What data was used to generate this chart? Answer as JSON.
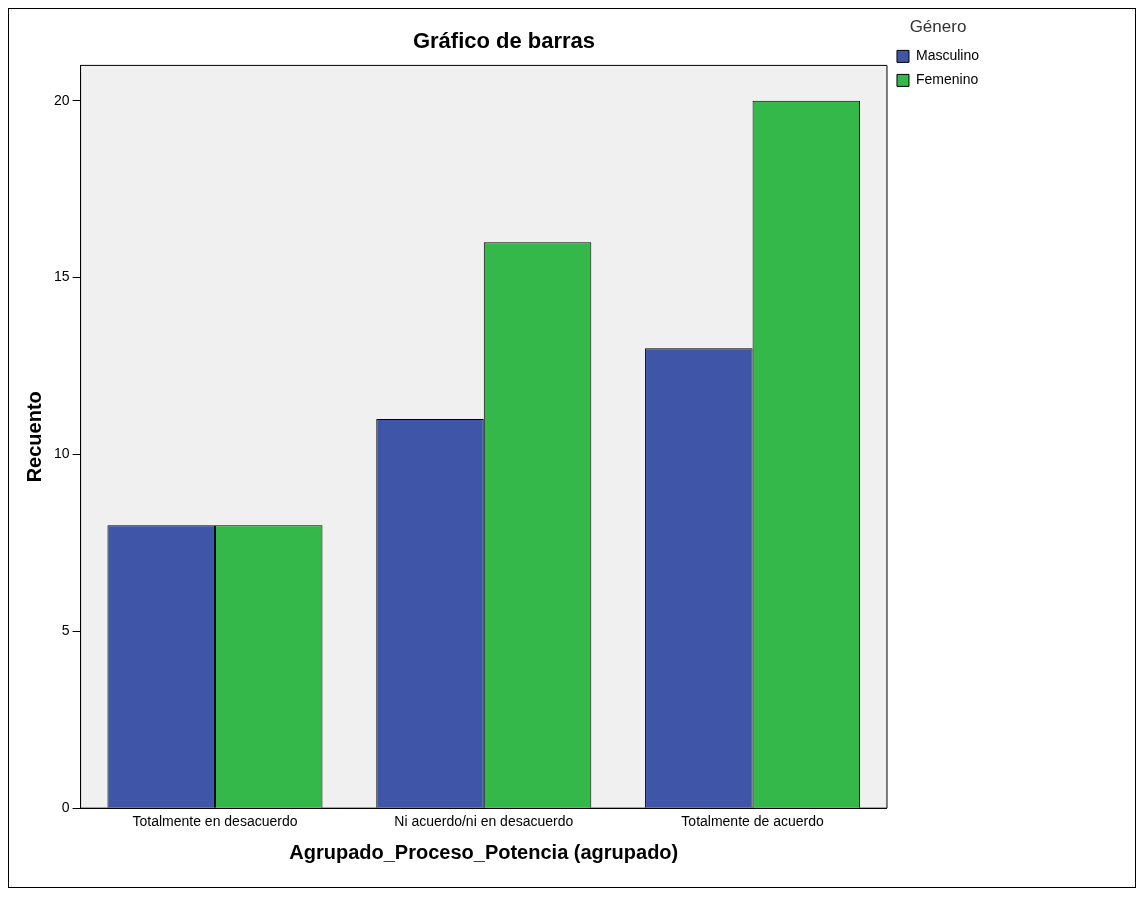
{
  "chart_data": {
    "type": "bar",
    "title": "Gráfico de barras",
    "xlabel": "Agrupado_Proceso_Potencia (agrupado)",
    "ylabel": "Recuento",
    "legend_title": "Género",
    "categories": [
      "Totalmente en desacuerdo",
      "Ni acuerdo/ni en desacuerdo",
      "Totalmente de acuerdo"
    ],
    "series": [
      {
        "name": "Masculino",
        "color": "#3f56a8",
        "values": [
          8,
          11,
          13
        ]
      },
      {
        "name": "Femenino",
        "color": "#34b84a",
        "values": [
          8,
          16,
          20
        ]
      }
    ],
    "ylim": [
      0,
      21
    ],
    "yticks": [
      0,
      5,
      10,
      15,
      20
    ],
    "grid": false,
    "legend": "top right"
  }
}
